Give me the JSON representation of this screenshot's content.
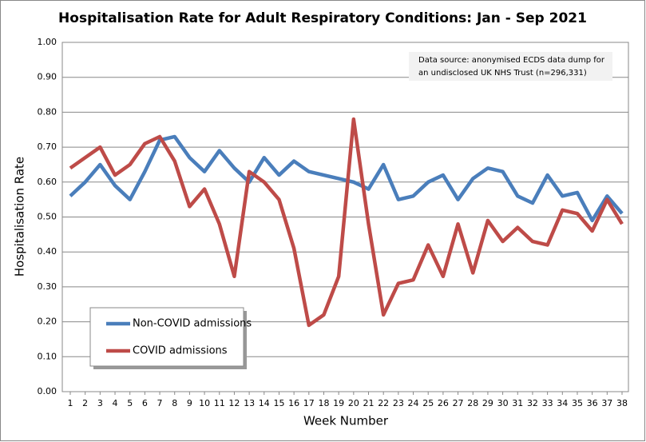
{
  "chart_data": {
    "type": "line",
    "title": "Hospitalisation  Rate for Adult Respiratory Conditions:  Jan - Sep 2021",
    "x_label": "Week Number",
    "y_label": "Hospitalisation Rate",
    "annotation": [
      "Data source: anonymised ECDS data dump for",
      "an undisclosed UK NHS Trust (n=296,331)"
    ],
    "x": [
      1,
      2,
      3,
      4,
      5,
      6,
      7,
      8,
      9,
      10,
      11,
      12,
      13,
      14,
      15,
      16,
      17,
      18,
      19,
      20,
      21,
      22,
      23,
      24,
      25,
      26,
      27,
      28,
      29,
      30,
      31,
      32,
      33,
      34,
      35,
      36,
      37,
      38
    ],
    "xlim": [
      1,
      38
    ],
    "xticks": [
      1,
      2,
      3,
      4,
      5,
      6,
      7,
      8,
      9,
      10,
      11,
      12,
      13,
      14,
      15,
      16,
      17,
      18,
      19,
      20,
      21,
      22,
      23,
      24,
      25,
      26,
      27,
      28,
      29,
      30,
      31,
      32,
      33,
      34,
      35,
      36,
      37,
      38
    ],
    "ylim": [
      0,
      1
    ],
    "yticks": [
      {
        "value": 0,
        "label": "0.00"
      },
      {
        "value": 0.1,
        "label": "0.10"
      },
      {
        "value": 0.2,
        "label": "0.20"
      },
      {
        "value": 0.3,
        "label": "0.30"
      },
      {
        "value": 0.4,
        "label": "0.40"
      },
      {
        "value": 0.5,
        "label": "0.50"
      },
      {
        "value": 0.6,
        "label": "0.60"
      },
      {
        "value": 0.7,
        "label": "0.70"
      },
      {
        "value": 0.8,
        "label": "0.80"
      },
      {
        "value": 0.9,
        "label": "0.90"
      },
      {
        "value": 1,
        "label": "1.00"
      }
    ],
    "grid": true,
    "legend": "lower-left",
    "series": [
      {
        "name": "Non-COVID admissions",
        "color": "#4a7ebb",
        "values": [
          0.56,
          0.6,
          0.65,
          0.59,
          0.55,
          0.63,
          0.72,
          0.73,
          0.67,
          0.63,
          0.69,
          0.64,
          0.6,
          0.67,
          0.62,
          0.66,
          0.63,
          0.62,
          0.61,
          0.6,
          0.58,
          0.65,
          0.55,
          0.56,
          0.6,
          0.62,
          0.55,
          0.61,
          0.64,
          0.63,
          0.56,
          0.54,
          0.62,
          0.56,
          0.57,
          0.49,
          0.56,
          0.51
        ]
      },
      {
        "name": "COVID admissions",
        "color": "#be4b48",
        "values": [
          0.64,
          0.67,
          0.7,
          0.62,
          0.65,
          0.71,
          0.73,
          0.66,
          0.53,
          0.58,
          0.48,
          0.33,
          0.63,
          0.6,
          0.55,
          0.41,
          0.19,
          0.22,
          0.33,
          0.78,
          0.48,
          0.22,
          0.31,
          0.32,
          0.42,
          0.33,
          0.48,
          0.34,
          0.49,
          0.43,
          0.47,
          0.43,
          0.42,
          0.52,
          0.51,
          0.46,
          0.55,
          0.48
        ]
      }
    ]
  }
}
